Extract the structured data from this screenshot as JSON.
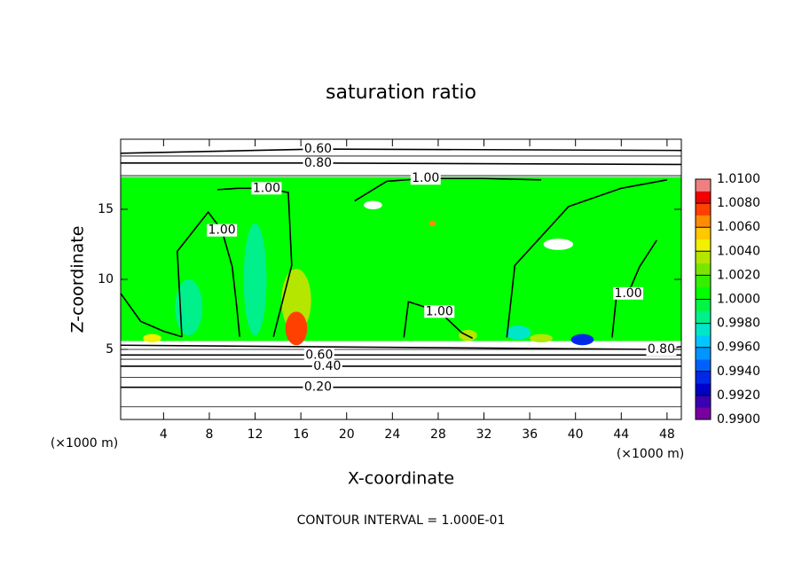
{
  "chart_data": {
    "type": "contour",
    "title": "saturation ratio",
    "x_label": "X-coordinate",
    "y_label": "Z-coordinate",
    "x_unit_left": "(×1000 m)",
    "x_unit_right": "(×1000 m)",
    "footer": "CONTOUR INTERVAL = 1.000E-01",
    "xlim": [
      0.25,
      49.25
    ],
    "ylim": [
      0,
      20
    ],
    "xticks": [
      4,
      8,
      12,
      16,
      20,
      24,
      28,
      32,
      36,
      40,
      44,
      48
    ],
    "yticks": [
      5,
      10,
      15
    ],
    "colorbar": {
      "lim": [
        0.99,
        1.01
      ],
      "ticks": [
        {
          "value": 0.99,
          "label": "0.9900"
        },
        {
          "value": 0.992,
          "label": "0.9920"
        },
        {
          "value": 0.994,
          "label": "0.9940"
        },
        {
          "value": 0.996,
          "label": "0.9960"
        },
        {
          "value": 0.998,
          "label": "0.9980"
        },
        {
          "value": 1.0,
          "label": "1.0000"
        },
        {
          "value": 1.002,
          "label": "1.0020"
        },
        {
          "value": 1.004,
          "label": "1.0040"
        },
        {
          "value": 1.006,
          "label": "1.0060"
        },
        {
          "value": 1.008,
          "label": "1.0080"
        },
        {
          "value": 1.01,
          "label": "1.0100"
        }
      ],
      "colors": [
        "#7800a0",
        "#3c00b4",
        "#0000c8",
        "#0028e6",
        "#0060ff",
        "#0096ff",
        "#00c8ff",
        "#00e6c8",
        "#00f08c",
        "#00f546",
        "#00ff00",
        "#32f000",
        "#78e600",
        "#b4e600",
        "#f0f000",
        "#ffc800",
        "#ff8c00",
        "#ff4000",
        "#f00000",
        "#f08080"
      ]
    },
    "field": {
      "zlim": [
        5.6,
        17.3
      ],
      "value": 1.0005,
      "spots": [
        {
          "x": 15.6,
          "z": 8.5,
          "width": 2.6,
          "height": 4.5,
          "value": 1.0032
        },
        {
          "x": 15.6,
          "z": 6.5,
          "width": 1.9,
          "height": 2.4,
          "value": 1.0072
        },
        {
          "x": 12.0,
          "z": 10.0,
          "width": 2.0,
          "height": 8.0,
          "value": 0.9989
        },
        {
          "x": 6.2,
          "z": 8.0,
          "width": 2.4,
          "height": 4.0,
          "value": 0.9989
        },
        {
          "x": 3.0,
          "z": 5.8,
          "width": 1.6,
          "height": 0.6,
          "value": 1.0045
        },
        {
          "x": 30.6,
          "z": 6.0,
          "width": 1.6,
          "height": 0.8,
          "value": 1.0032
        },
        {
          "x": 35.0,
          "z": 6.2,
          "width": 2.2,
          "height": 1.0,
          "value": 0.9972
        },
        {
          "x": 40.6,
          "z": 5.7,
          "width": 2.0,
          "height": 0.8,
          "value": 0.9935
        },
        {
          "x": 37.0,
          "z": 5.8,
          "width": 2.0,
          "height": 0.6,
          "value": 1.0036
        },
        {
          "x": 38.5,
          "z": 12.5,
          "width": 2.6,
          "height": 0.8,
          "value": 0.985
        },
        {
          "x": 22.3,
          "z": 15.3,
          "width": 1.6,
          "height": 0.6,
          "value": 0.985
        },
        {
          "x": 27.5,
          "z": 14.0,
          "width": 0.6,
          "height": 0.4,
          "value": 1.0065
        }
      ]
    },
    "contours": [
      {
        "level": 0.1,
        "x": [
          0.25,
          49.25
        ],
        "z": [
          0.9,
          0.9
        ]
      },
      {
        "level": 0.2,
        "label": "0.20",
        "x": [
          0.25,
          17.5,
          49.25
        ],
        "z": [
          2.3,
          2.3,
          2.3
        ]
      },
      {
        "level": 0.3,
        "x": [
          0.25,
          49.25
        ],
        "z": [
          3.0,
          3.0
        ]
      },
      {
        "level": 0.4,
        "label": "0.40",
        "x": [
          0.25,
          18.3,
          49.25
        ],
        "z": [
          3.8,
          3.8,
          3.8
        ]
      },
      {
        "level": 0.5,
        "x": [
          0.25,
          49.25
        ],
        "z": [
          4.3,
          4.3
        ]
      },
      {
        "level": 0.6,
        "label": "0.60",
        "x": [
          0.25,
          17.6,
          49.25
        ],
        "z": [
          4.6,
          4.6,
          4.6
        ]
      },
      {
        "level": 0.7,
        "x": [
          0.25,
          49.25
        ],
        "z": [
          5.0,
          5.0
        ]
      },
      {
        "level": 0.8,
        "label": "0.80",
        "x": [
          0.25,
          47.5,
          49.25
        ],
        "z": [
          5.3,
          5.0,
          5.2
        ]
      },
      {
        "level": 0.9,
        "x": [
          0.25,
          49.25
        ],
        "z": [
          17.4,
          17.4
        ]
      },
      {
        "level": 0.8,
        "label": "0.80",
        "x": [
          0.25,
          17.5,
          49.25
        ],
        "z": [
          18.3,
          18.3,
          18.2
        ]
      },
      {
        "level": 0.7,
        "x": [
          0.25,
          49.25
        ],
        "z": [
          18.8,
          18.8
        ]
      },
      {
        "level": 0.6,
        "label": "0.60",
        "x": [
          0.25,
          17.5,
          49.25
        ],
        "z": [
          19.0,
          19.3,
          19.2
        ]
      },
      {
        "level": 1.0,
        "label": "1.00",
        "x": [
          8.7,
          10.5,
          13.0,
          14.9,
          15.2,
          13.6
        ],
        "z": [
          16.4,
          16.5,
          16.5,
          16.2,
          11.0,
          5.9
        ]
      },
      {
        "level": 1.0,
        "label": "1.00",
        "x": [
          5.6,
          5.2,
          7.9,
          9.1,
          10.0,
          10.4,
          10.65
        ],
        "z": [
          5.9,
          12.0,
          14.8,
          13.5,
          10.9,
          8.0,
          5.9
        ]
      },
      {
        "level": 1.0,
        "label": "1.00",
        "x": [
          20.7,
          23.5,
          26.9,
          32.0,
          37.0
        ],
        "z": [
          15.6,
          17.0,
          17.2,
          17.2,
          17.1
        ]
      },
      {
        "level": 1.0,
        "label": "1.00",
        "x": [
          25.0,
          25.4,
          28.1,
          30.05,
          31.0
        ],
        "z": [
          5.85,
          8.4,
          7.7,
          6.2,
          5.8
        ]
      },
      {
        "level": 1.0,
        "label": "1.00",
        "x": [
          43.2,
          43.6,
          44.6,
          45.6,
          47.1
        ],
        "z": [
          5.85,
          9.0,
          9.0,
          10.9,
          12.8
        ]
      },
      {
        "level": 1.0,
        "x": [
          34.0,
          34.7,
          39.4,
          44.0,
          48.0
        ],
        "z": [
          5.85,
          11.0,
          15.2,
          16.5,
          17.1
        ]
      },
      {
        "level": 1.0,
        "x": [
          0.25,
          2.0,
          4.0,
          5.6
        ],
        "z": [
          9.0,
          7.0,
          6.3,
          5.9
        ]
      }
    ]
  }
}
